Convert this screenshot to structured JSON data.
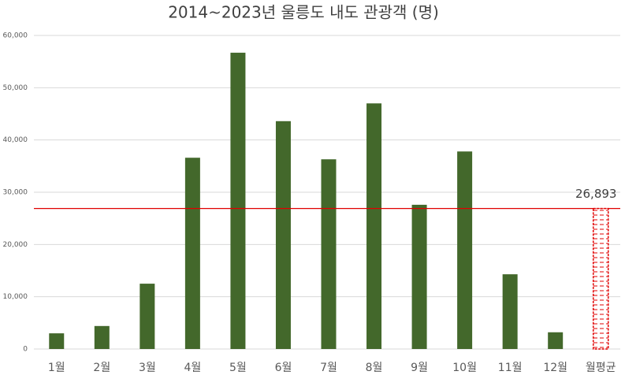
{
  "chart_data": {
    "type": "bar",
    "title": "2014~2023년 울릉도 내도 관광객 (명)",
    "categories": [
      "1월",
      "2월",
      "3월",
      "4월",
      "5월",
      "6월",
      "7월",
      "8월",
      "9월",
      "10월",
      "11월",
      "12월"
    ],
    "values": [
      3000,
      4400,
      12500,
      36600,
      56700,
      43600,
      36300,
      47000,
      27600,
      37800,
      14300,
      3200
    ],
    "color": "#43682b",
    "average": {
      "category": "월평균",
      "value": 26893,
      "label": "26,893",
      "color": "#e00000"
    },
    "ylim": [
      0,
      60000
    ],
    "yticks": [
      0,
      {
        "value": 10000,
        "label": "10,000"
      },
      {
        "value": 20000,
        "label": "20,000"
      },
      {
        "value": 30000,
        "label": "30,000"
      },
      {
        "value": 40000,
        "label": "40,000"
      },
      {
        "value": 50000,
        "label": "50,000"
      },
      {
        "value": 60000,
        "label": "60,000"
      }
    ],
    "grid": true
  }
}
